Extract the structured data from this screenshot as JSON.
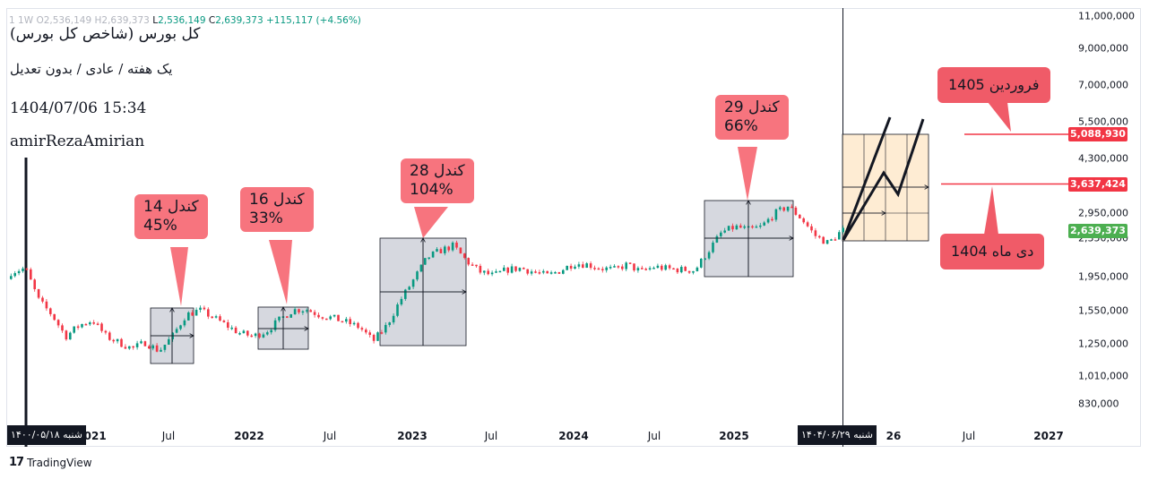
{
  "symbol_bar": {
    "index": "1",
    "interval": "1W",
    "o_label": "O",
    "o_value": "2,536,149",
    "h_label": "H",
    "h_value": "2,639,373",
    "l_label": "L",
    "l_value": "2,536,149",
    "c_label": "C",
    "c_value": "2,639,373",
    "change": "+115,117 (+4.56%)"
  },
  "info": {
    "title": "کل بورس (شاخص کل بورس)",
    "subtitle": "یک هفته / عادی / بدون تعدیل",
    "datetime": "1404/07/06 15:34",
    "author": "amirRezaAmirian"
  },
  "colors": {
    "up": "#089981",
    "down": "#f23645",
    "callout": "#f7747e",
    "target": "#f05b68",
    "range_box": "#d1d4dc",
    "projection": "#fde5c4",
    "level_line": "#f23645",
    "current_tag": "#4caf50"
  },
  "callouts": [
    {
      "line1": "کندل 14",
      "line2": "45%"
    },
    {
      "line1": "کندل 16",
      "line2": "33%"
    },
    {
      "line1": "کندل 28",
      "line2": "104%"
    },
    {
      "line1": "کندل 29",
      "line2": "66%"
    }
  ],
  "targets": {
    "farvardin": "فروردین 1405",
    "dey": "دی ماه 1404"
  },
  "price_tags": {
    "level_high": "5,088,930",
    "level_mid": "3,637,424",
    "current": "2,639,373"
  },
  "date_tags": {
    "left": "شنبه ۱۴۰۰/۰۵/۱۸",
    "crosshair": "شنبه ۱۴۰۴/۰۶/۲۹"
  },
  "tv_brand": "TradingView",
  "tv_mark": "17",
  "chart_data": {
    "type": "candlestick",
    "scale": "log",
    "y_ticks": [
      "11,000,000",
      "9,000,000",
      "7,000,000",
      "5,500,000",
      "4,300,000",
      "2,950,000",
      "2,350,000",
      "1,950,000",
      "1,550,000",
      "1,250,000",
      "1,010,000",
      "830,000"
    ],
    "x_ticks": [
      "2021",
      "Jul",
      "2022",
      "Jul",
      "2023",
      "Jul",
      "2024",
      "Jul",
      "2025",
      "26",
      "Jul",
      "2027"
    ],
    "x_tick_bold": [
      true,
      false,
      true,
      false,
      true,
      false,
      true,
      false,
      true,
      true,
      false,
      true
    ],
    "last_close": 2639373,
    "levels": [
      5088930,
      3637424
    ],
    "series_points": [
      [
        "2020-06-01",
        1900000
      ],
      [
        "2020-07-01",
        2000000
      ],
      [
        "2020-08-01",
        2050000
      ],
      [
        "2020-09-01",
        1650000
      ],
      [
        "2020-10-01",
        1500000
      ],
      [
        "2020-11-01",
        1300000
      ],
      [
        "2020-12-01",
        1400000
      ],
      [
        "2021-01-01",
        1450000
      ],
      [
        "2021-02-01",
        1300000
      ],
      [
        "2021-03-01",
        1250000
      ],
      [
        "2021-04-01",
        1200000
      ],
      [
        "2021-05-01",
        1250000
      ],
      [
        "2021-06-01",
        1180000
      ],
      [
        "2021-07-01",
        1300000
      ],
      [
        "2021-08-01",
        1500000
      ],
      [
        "2021-09-01",
        1550000
      ],
      [
        "2021-10-01",
        1480000
      ],
      [
        "2021-11-01",
        1400000
      ],
      [
        "2021-12-01",
        1330000
      ],
      [
        "2022-01-01",
        1300000
      ],
      [
        "2022-02-01",
        1350000
      ],
      [
        "2022-03-01",
        1450000
      ],
      [
        "2022-04-01",
        1550000
      ],
      [
        "2022-05-01",
        1560000
      ],
      [
        "2022-06-01",
        1500000
      ],
      [
        "2022-07-01",
        1470000
      ],
      [
        "2022-08-01",
        1430000
      ],
      [
        "2022-09-01",
        1380000
      ],
      [
        "2022-10-01",
        1260000
      ],
      [
        "2022-11-01",
        1400000
      ],
      [
        "2022-12-01",
        1650000
      ],
      [
        "2023-01-01",
        1900000
      ],
      [
        "2023-02-01",
        2200000
      ],
      [
        "2023-03-01",
        2300000
      ],
      [
        "2023-04-01",
        2380000
      ],
      [
        "2023-05-01",
        2150000
      ],
      [
        "2023-06-01",
        2000000
      ],
      [
        "2023-07-01",
        1950000
      ],
      [
        "2023-08-01",
        2030000
      ],
      [
        "2023-09-01",
        2050000
      ],
      [
        "2023-10-01",
        2000000
      ],
      [
        "2023-11-01",
        1950000
      ],
      [
        "2023-12-01",
        2020000
      ],
      [
        "2024-01-01",
        2120000
      ],
      [
        "2024-02-01",
        2100000
      ],
      [
        "2024-03-01",
        2050000
      ],
      [
        "2024-04-01",
        2030000
      ],
      [
        "2024-05-01",
        2100000
      ],
      [
        "2024-06-01",
        2000000
      ],
      [
        "2024-07-01",
        2070000
      ],
      [
        "2024-08-01",
        2040000
      ],
      [
        "2024-09-01",
        2030000
      ],
      [
        "2024-10-01",
        2020000
      ],
      [
        "2024-11-01",
        2300000
      ],
      [
        "2024-12-01",
        2600000
      ],
      [
        "2025-01-01",
        2700000
      ],
      [
        "2025-02-01",
        2650000
      ],
      [
        "2025-03-01",
        2700000
      ],
      [
        "2025-04-01",
        2950000
      ],
      [
        "2025-05-01",
        3100000
      ],
      [
        "2025-06-01",
        2850000
      ],
      [
        "2025-07-01",
        2550000
      ],
      [
        "2025-08-01",
        2420000
      ],
      [
        "2025-09-01",
        2639373
      ]
    ]
  }
}
